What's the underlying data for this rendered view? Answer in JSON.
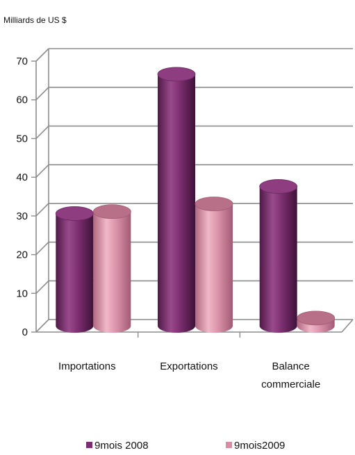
{
  "chart_data": {
    "type": "bar",
    "style": "3d-cylinder",
    "unit_label": "Milliards de US $",
    "categories": [
      [
        "Importations"
      ],
      [
        "Exportations"
      ],
      [
        "Balance",
        "commerciale"
      ]
    ],
    "series": [
      {
        "name": "9mois 2008",
        "color": "#7B2E6F",
        "values": [
          29,
          65,
          36
        ]
      },
      {
        "name": "9mois2009",
        "color": "#D98CA4",
        "values": [
          29.5,
          31.5,
          2
        ]
      }
    ],
    "ylim": [
      0,
      70
    ],
    "yticks": [
      0,
      10,
      20,
      30,
      40,
      50,
      60,
      70
    ],
    "grid": true,
    "legend_position": "bottom"
  }
}
